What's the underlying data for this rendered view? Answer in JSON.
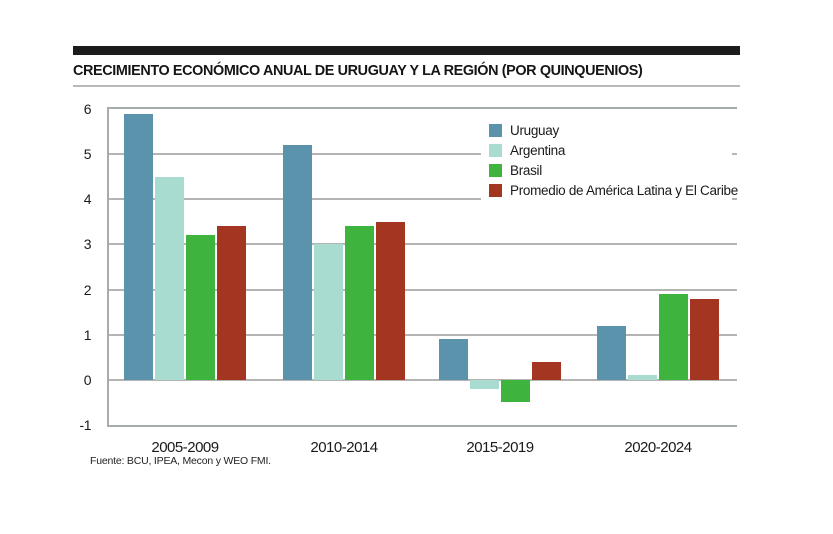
{
  "figure": {
    "title": "CRECIMIENTO ECONÓMICO ANUAL DE URUGUAY Y LA REGIÓN (POR QUINQUENIOS)",
    "source_note": "Fuente: BCU, IPEA, Mecon y WEO FMI."
  },
  "chart_data": {
    "type": "bar",
    "title": "CRECIMIENTO ECONÓMICO ANUAL DE URUGUAY Y LA REGIÓN (POR QUINQUENIOS)",
    "categories": [
      "2005-2009",
      "2010-2014",
      "2015-2019",
      "2020-2024"
    ],
    "series": [
      {
        "name": "Uruguay",
        "color": "#5b92ac",
        "values": [
          5.9,
          5.2,
          0.9,
          1.2
        ]
      },
      {
        "name": "Argentina",
        "color": "#a9dcd1",
        "values": [
          4.5,
          3.0,
          -0.2,
          0.1
        ]
      },
      {
        "name": "Brasil",
        "color": "#3eb43e",
        "values": [
          3.2,
          3.4,
          -0.5,
          1.9
        ]
      },
      {
        "name": "Promedio de América Latina y El Caribe",
        "color": "#a43521",
        "values": [
          3.4,
          3.5,
          0.4,
          1.8
        ]
      }
    ],
    "xlabel": "",
    "ylabel": "",
    "ylim": [
      -1,
      6
    ],
    "yticks": [
      6,
      5,
      4,
      3,
      2,
      1,
      0,
      -1
    ],
    "grid": true,
    "legend_position": "top-right",
    "gridline_color": "#b4b4b4",
    "axis_color": "#a6abad",
    "source": "Fuente: BCU, IPEA, Mecon y WEO FMI."
  }
}
